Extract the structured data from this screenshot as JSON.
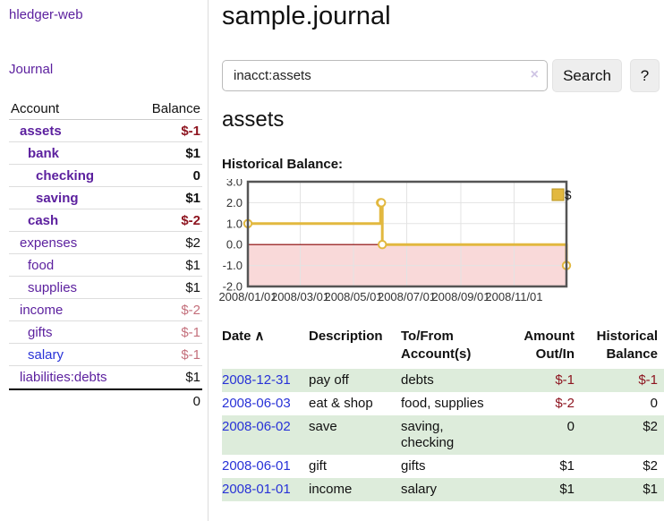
{
  "colors": {
    "link_purple": "#5b1f9e",
    "link_blue": "#2832d7",
    "negative_strong": "#8e1520",
    "negative_soft": "#c4707c",
    "row_green": "#ddecdb",
    "chart_line_gold": "#e2b83f",
    "chart_negative_fill": "#f9d9d9",
    "chart_zero_line": "#8b0000"
  },
  "sidebar": {
    "brand": "hledger-web",
    "nav_journal": "Journal",
    "accounts_table": {
      "headers": {
        "account": "Account",
        "balance": "Balance"
      },
      "rows": [
        {
          "account": "assets",
          "indent": 0,
          "bold": true,
          "balance": "$-1",
          "balance_style": "neg-strong"
        },
        {
          "account": "bank",
          "indent": 1,
          "bold": true,
          "balance": "$1",
          "balance_style": "pos"
        },
        {
          "account": "checking",
          "indent": 2,
          "bold": true,
          "balance": "0",
          "balance_style": "pos"
        },
        {
          "account": "saving",
          "indent": 2,
          "bold": true,
          "balance": "$1",
          "balance_style": "pos"
        },
        {
          "account": "cash",
          "indent": 1,
          "bold": true,
          "balance": "$-2",
          "balance_style": "neg-strong"
        },
        {
          "account": "expenses",
          "indent": 0,
          "bold": false,
          "balance": "$2",
          "balance_style": "pos"
        },
        {
          "account": "food",
          "indent": 1,
          "bold": false,
          "balance": "$1",
          "balance_style": "pos"
        },
        {
          "account": "supplies",
          "indent": 1,
          "bold": false,
          "balance": "$1",
          "balance_style": "pos"
        },
        {
          "account": "income",
          "indent": 0,
          "bold": false,
          "balance": "$-2",
          "balance_style": "neg-soft"
        },
        {
          "account": "gifts",
          "indent": 1,
          "bold": false,
          "balance": "$-1",
          "balance_style": "neg-soft"
        },
        {
          "account": "salary",
          "indent": 1,
          "bold": false,
          "balance": "$-1",
          "balance_style": "neg-soft",
          "link_color": "blue"
        },
        {
          "account": "liabilities:debts",
          "indent": 0,
          "bold": false,
          "balance": "$1",
          "balance_style": "pos"
        }
      ],
      "total": "0"
    }
  },
  "main": {
    "title": "sample.journal",
    "search": {
      "value": "inacct:assets",
      "clear_icon": "×",
      "button_label": "Search",
      "help_label": "?"
    },
    "account_heading": "assets",
    "chart_label": "Historical Balance:"
  },
  "chart_data": {
    "type": "line",
    "step": true,
    "title": "Historical Balance",
    "series": [
      {
        "name": "$",
        "points": [
          [
            "2008-01-01",
            1
          ],
          [
            "2008-06-01",
            2
          ],
          [
            "2008-06-02",
            2
          ],
          [
            "2008-06-03",
            0
          ],
          [
            "2008-12-31",
            -1
          ]
        ]
      }
    ],
    "ylim": [
      -2,
      3
    ],
    "yticks": [
      "3.0",
      "2.0",
      "1.0",
      "0.0",
      "-1.0",
      "-2.0"
    ],
    "xticks": [
      "2008/01/01",
      "2008/03/01",
      "2008/05/01",
      "2008/07/01",
      "2008/09/01",
      "2008/11/01"
    ],
    "legend": {
      "label": "$",
      "position": "top-right"
    },
    "grid": true
  },
  "transactions": {
    "headers": [
      {
        "label": "Date",
        "sort_icon": "∧",
        "align": "left"
      },
      {
        "label": "Description",
        "align": "left"
      },
      {
        "label": "To/From Account(s)",
        "align": "left"
      },
      {
        "label": "Amount Out/In",
        "align": "right"
      },
      {
        "label": "Historical Balance",
        "align": "right"
      }
    ],
    "rows": [
      {
        "date": "2008-12-31",
        "description": "pay off",
        "accounts": "debts",
        "amount": "$-1",
        "amount_neg": true,
        "balance": "$-1",
        "balance_neg": true,
        "green": true
      },
      {
        "date": "2008-06-03",
        "description": "eat & shop",
        "accounts": "food, supplies",
        "amount": "$-2",
        "amount_neg": true,
        "balance": "0",
        "balance_neg": false,
        "green": false
      },
      {
        "date": "2008-06-02",
        "description": "save",
        "accounts": "saving, checking",
        "amount": "0",
        "amount_neg": false,
        "balance": "$2",
        "balance_neg": false,
        "green": true
      },
      {
        "date": "2008-06-01",
        "description": "gift",
        "accounts": "gifts",
        "amount": "$1",
        "amount_neg": false,
        "balance": "$2",
        "balance_neg": false,
        "green": false
      },
      {
        "date": "2008-01-01",
        "description": "income",
        "accounts": "salary",
        "amount": "$1",
        "amount_neg": false,
        "balance": "$1",
        "balance_neg": false,
        "green": true
      }
    ]
  }
}
